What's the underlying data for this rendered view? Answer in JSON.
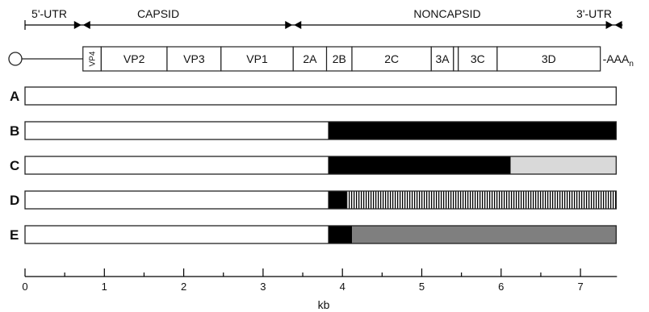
{
  "regions": [
    {
      "label": "5'-UTR",
      "start_kb": 0,
      "end_kb": 0.72
    },
    {
      "label": "CAPSID",
      "start_kb": 0.72,
      "end_kb": 3.38
    },
    {
      "label": "NONCAPSID",
      "start_kb": 3.38,
      "end_kb": 7.32
    },
    {
      "label": "3'-UTR",
      "start_kb": 7.32,
      "end_kb": 7.45
    }
  ],
  "genome": {
    "poly_a": "-AAA",
    "poly_a_subscript": "n",
    "segments": [
      {
        "label": "VP4",
        "start_kb": 0.73,
        "end_kb": 0.96,
        "vertical": true
      },
      {
        "label": "VP2",
        "start_kb": 0.96,
        "end_kb": 1.79
      },
      {
        "label": "VP3",
        "start_kb": 1.79,
        "end_kb": 2.47
      },
      {
        "label": "VP1",
        "start_kb": 2.47,
        "end_kb": 3.38
      },
      {
        "label": "2A",
        "start_kb": 3.38,
        "end_kb": 3.8
      },
      {
        "label": "2B",
        "start_kb": 3.8,
        "end_kb": 4.12
      },
      {
        "label": "2C",
        "start_kb": 4.12,
        "end_kb": 5.12
      },
      {
        "label": "3A",
        "start_kb": 5.12,
        "end_kb": 5.4
      },
      {
        "label": "",
        "start_kb": 5.4,
        "end_kb": 5.46
      },
      {
        "label": "3C",
        "start_kb": 5.46,
        "end_kb": 5.95
      },
      {
        "label": "3D",
        "start_kb": 5.95,
        "end_kb": 7.25
      }
    ]
  },
  "constructs": [
    {
      "label": "A",
      "segments": [
        {
          "start_kb": 0,
          "end_kb": 7.45,
          "fill": "white"
        }
      ]
    },
    {
      "label": "B",
      "segments": [
        {
          "start_kb": 0,
          "end_kb": 3.82,
          "fill": "white"
        },
        {
          "start_kb": 3.82,
          "end_kb": 7.45,
          "fill": "black"
        }
      ]
    },
    {
      "label": "C",
      "segments": [
        {
          "start_kb": 0,
          "end_kb": 3.82,
          "fill": "white"
        },
        {
          "start_kb": 3.82,
          "end_kb": 6.12,
          "fill": "black"
        },
        {
          "start_kb": 6.12,
          "end_kb": 7.45,
          "fill": "lightgray"
        }
      ]
    },
    {
      "label": "D",
      "segments": [
        {
          "start_kb": 0,
          "end_kb": 3.82,
          "fill": "white"
        },
        {
          "start_kb": 3.82,
          "end_kb": 4.05,
          "fill": "black"
        },
        {
          "start_kb": 4.05,
          "end_kb": 7.45,
          "fill": "striped"
        }
      ]
    },
    {
      "label": "E",
      "segments": [
        {
          "start_kb": 0,
          "end_kb": 3.82,
          "fill": "white"
        },
        {
          "start_kb": 3.82,
          "end_kb": 4.12,
          "fill": "black"
        },
        {
          "start_kb": 4.12,
          "end_kb": 7.45,
          "fill": "gray"
        }
      ]
    }
  ],
  "axis": {
    "label": "kb",
    "min": 0,
    "max": 7.5,
    "major_ticks": [
      "0",
      "1",
      "2",
      "3",
      "4",
      "5",
      "6",
      "7"
    ],
    "minor_step": 0.5
  },
  "colors": {
    "white": "#ffffff",
    "black": "#000000",
    "lightgray": "#d9d9d9",
    "gray": "#7f7f7f",
    "stroke": "#222222"
  }
}
